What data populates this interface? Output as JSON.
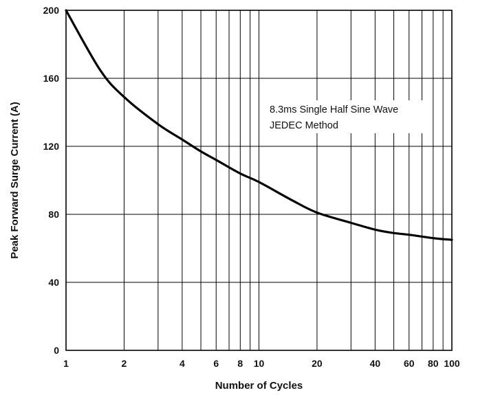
{
  "chart_data": {
    "type": "line",
    "xlabel": "Number of Cycles",
    "ylabel": "Peak Forward Surge Current (A)",
    "x_scale": "log",
    "xlim": [
      1,
      100
    ],
    "ylim": [
      0,
      200
    ],
    "x_ticks": [
      1,
      2,
      4,
      6,
      8,
      10,
      20,
      40,
      60,
      80,
      100
    ],
    "x_gridlines": [
      1,
      2,
      3,
      4,
      5,
      6,
      7,
      8,
      9,
      10,
      20,
      30,
      40,
      50,
      60,
      70,
      80,
      90,
      100
    ],
    "y_ticks": [
      0,
      40,
      80,
      120,
      160,
      200
    ],
    "grid": true,
    "annotations": [
      "8.3ms Single Half Sine Wave",
      "JEDEC Method"
    ],
    "series": [
      {
        "x": [
          1,
          1.5,
          2,
          3,
          4,
          5,
          6,
          8,
          10,
          15,
          20,
          30,
          40,
          50,
          60,
          80,
          100
        ],
        "y": [
          200,
          165,
          149,
          133,
          124,
          117,
          112,
          104,
          99,
          88,
          81,
          75,
          71,
          69,
          68,
          66,
          65
        ]
      }
    ],
    "colors": {
      "line": "#000000",
      "grid": "#000000",
      "frame": "#000000"
    }
  }
}
